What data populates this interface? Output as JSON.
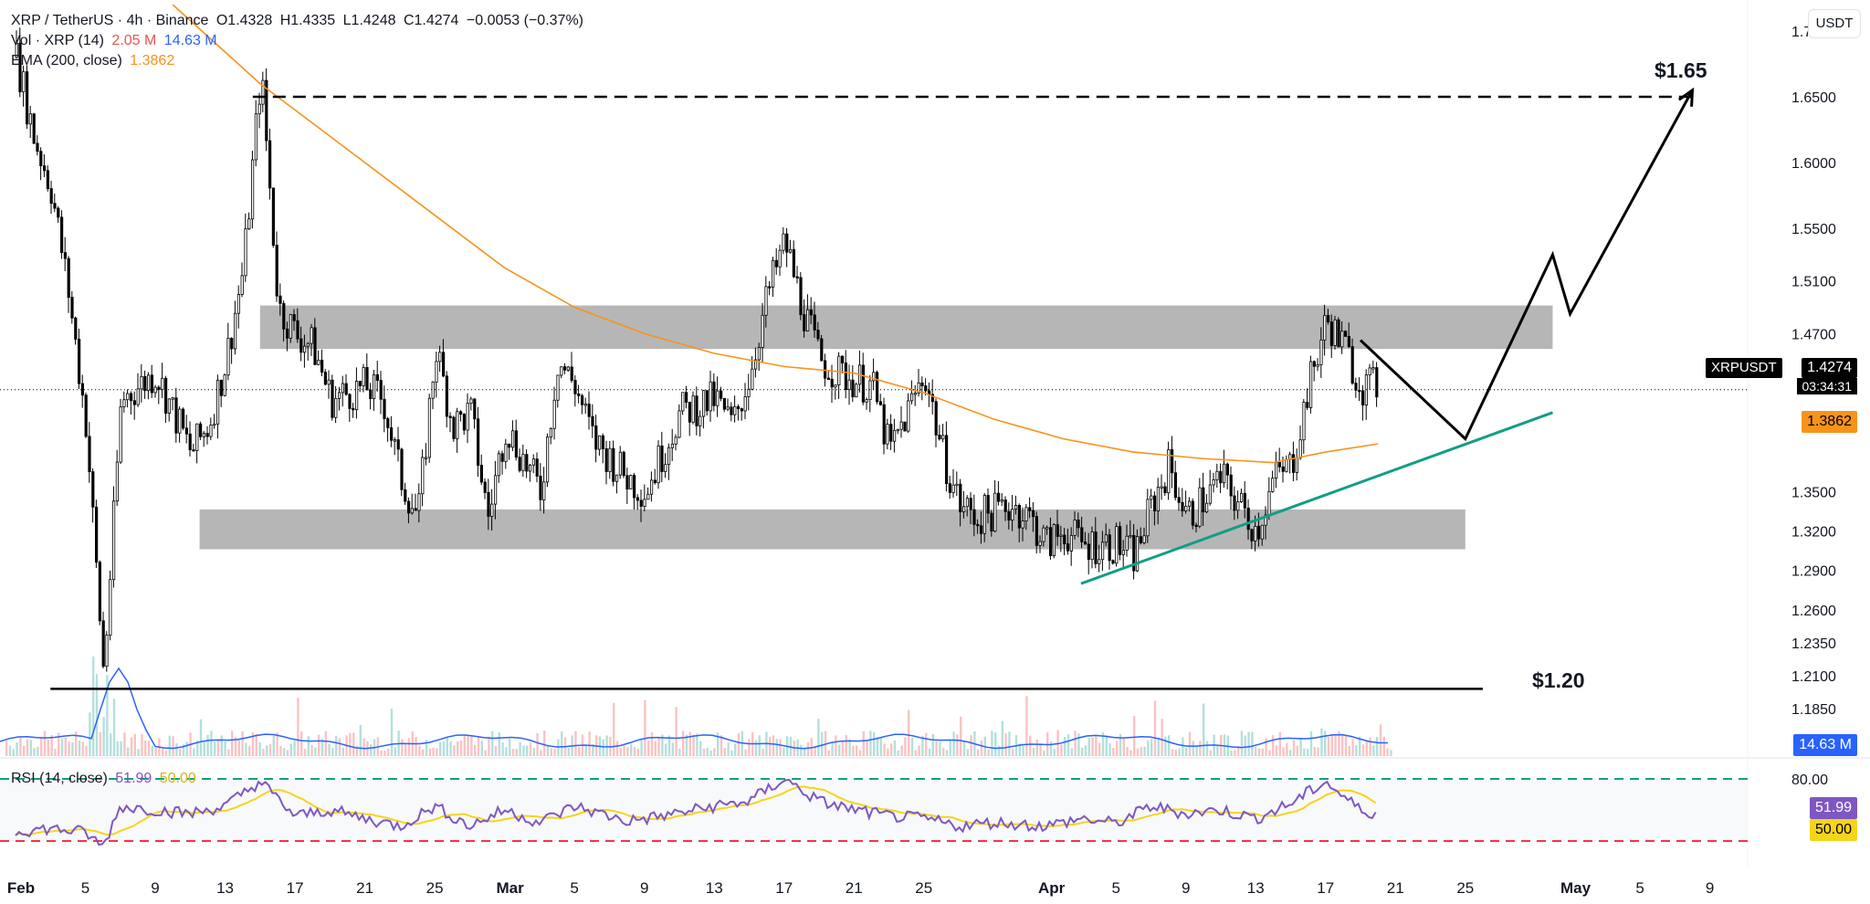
{
  "header": {
    "symbol": "XRP / TetherUS · 4h · Binance",
    "open": "O1.4328",
    "high": "H1.4335",
    "low": "L1.4248",
    "close": "C1.4274",
    "change": "−0.0053 (−0.37%)",
    "vol_label": "Vol · XRP (14)",
    "vol_value": "2.05 M",
    "vol_ma": "14.63 M",
    "ema_label": "EMA (200, close)",
    "ema_value": "1.3862",
    "rsi_label": "RSI (14, close)",
    "rsi_value": "51.99",
    "rsi_ma": "50.00"
  },
  "currency": "USDT",
  "symbol_tag": "XRPUSDT",
  "price_tag": "1.4274",
  "countdown": "03:34:31",
  "ema_tag": "1.3862",
  "vol_tag": "14.63 M",
  "rsi_tag": "51.99",
  "rsi_ma_tag": "50.00",
  "annotations": {
    "target_high": "$1.65",
    "support_low": "$1.20"
  },
  "colors": {
    "up": "#26a69a",
    "down": "#ef5350",
    "candle": "#000000",
    "ema": "#f7931a",
    "zone": "#9e9e9e",
    "trend": "#129e85",
    "rsi": "#7e57c2",
    "rsi_ma": "#f5d41b",
    "vol_ma": "#2962ff",
    "rsi_upper": "#129e85",
    "rsi_lower": "#f23645"
  },
  "chart_data": {
    "type": "candlestick",
    "price_axis": {
      "ticks": [
        "1.7000",
        "1.6500",
        "1.6000",
        "1.5500",
        "1.5100",
        "1.4700",
        "1.4274",
        "1.3862",
        "1.3500",
        "1.3200",
        "1.2900",
        "1.2600",
        "1.2350",
        "1.2100",
        "1.1850"
      ]
    },
    "rsi_axis": {
      "ticks": [
        "80.00",
        "51.99",
        "50.00"
      ]
    },
    "time_axis": {
      "ticks": [
        "Feb",
        "5",
        "9",
        "13",
        "17",
        "21",
        "25",
        "Mar",
        "5",
        "9",
        "13",
        "17",
        "21",
        "25",
        "Apr",
        "5",
        "9",
        "13",
        "17",
        "21",
        "25",
        "May",
        "5",
        "9"
      ]
    },
    "price_path": [
      [
        "Feb 1",
        1.68
      ],
      [
        "Feb 2",
        1.62
      ],
      [
        "Feb 3",
        1.58
      ],
      [
        "Feb 4",
        1.5
      ],
      [
        "Feb 5",
        1.4
      ],
      [
        "Feb 6",
        1.21
      ],
      [
        "Feb 7",
        1.42
      ],
      [
        "Feb 8",
        1.43
      ],
      [
        "Feb 9",
        1.44
      ],
      [
        "Feb 11",
        1.38
      ],
      [
        "Feb 12",
        1.4
      ],
      [
        "Feb 13",
        1.45
      ],
      [
        "Feb 14",
        1.52
      ],
      [
        "Feb 15",
        1.67
      ],
      [
        "Feb 16",
        1.49
      ],
      [
        "Feb 17",
        1.47
      ],
      [
        "Feb 18",
        1.46
      ],
      [
        "Feb 19",
        1.42
      ],
      [
        "Feb 21",
        1.43
      ],
      [
        "Feb 22",
        1.42
      ],
      [
        "Feb 23",
        1.36
      ],
      [
        "Feb 24",
        1.33
      ],
      [
        "Feb 25",
        1.46
      ],
      [
        "Feb 26",
        1.4
      ],
      [
        "Feb 27",
        1.41
      ],
      [
        "Feb 28",
        1.33
      ],
      [
        "Mar 1",
        1.4
      ],
      [
        "Mar 3",
        1.35
      ],
      [
        "Mar 4",
        1.45
      ],
      [
        "Mar 5",
        1.43
      ],
      [
        "Mar 6",
        1.39
      ],
      [
        "Mar 8",
        1.36
      ],
      [
        "Mar 9",
        1.35
      ],
      [
        "Mar 10",
        1.38
      ],
      [
        "Mar 11",
        1.41
      ],
      [
        "Mar 13",
        1.42
      ],
      [
        "Mar 14",
        1.4
      ],
      [
        "Mar 15",
        1.44
      ],
      [
        "Mar 16",
        1.5
      ],
      [
        "Mar 17",
        1.54
      ],
      [
        "Mar 18",
        1.49
      ],
      [
        "Mar 19",
        1.45
      ],
      [
        "Mar 20",
        1.44
      ],
      [
        "Mar 22",
        1.43
      ],
      [
        "Mar 23",
        1.38
      ],
      [
        "Mar 24",
        1.41
      ],
      [
        "Mar 25",
        1.44
      ],
      [
        "Mar 26",
        1.38
      ],
      [
        "Mar 27",
        1.34
      ],
      [
        "Mar 28",
        1.33
      ],
      [
        "Mar 30",
        1.34
      ],
      [
        "Mar 31",
        1.33
      ],
      [
        "Apr 1",
        1.31
      ],
      [
        "Apr 2",
        1.32
      ],
      [
        "Apr 3",
        1.31
      ],
      [
        "Apr 5",
        1.31
      ],
      [
        "Apr 6",
        1.3
      ],
      [
        "Apr 7",
        1.34
      ],
      [
        "Apr 8",
        1.37
      ],
      [
        "Apr 9",
        1.33
      ],
      [
        "Apr 11",
        1.36
      ],
      [
        "Apr 12",
        1.34
      ],
      [
        "Apr 13",
        1.32
      ],
      [
        "Apr 14",
        1.36
      ],
      [
        "Apr 15",
        1.37
      ],
      [
        "Apr 16",
        1.43
      ],
      [
        "Apr 17",
        1.48
      ],
      [
        "Apr 18",
        1.46
      ],
      [
        "Apr 19",
        1.43
      ],
      [
        "Apr 20",
        1.43
      ]
    ],
    "ema_path": [
      [
        "Feb 10",
        1.72
      ],
      [
        "Feb 15",
        1.66
      ],
      [
        "Feb 20",
        1.61
      ],
      [
        "Feb 25",
        1.56
      ],
      [
        "Mar 1",
        1.52
      ],
      [
        "Mar 5",
        1.49
      ],
      [
        "Mar 9",
        1.47
      ],
      [
        "Mar 13",
        1.455
      ],
      [
        "Mar 17",
        1.445
      ],
      [
        "Mar 21",
        1.44
      ],
      [
        "Mar 25",
        1.425
      ],
      [
        "Mar 29",
        1.405
      ],
      [
        "Apr 2",
        1.39
      ],
      [
        "Apr 6",
        1.38
      ],
      [
        "Apr 10",
        1.375
      ],
      [
        "Apr 14",
        1.372
      ],
      [
        "Apr 17",
        1.38
      ],
      [
        "Apr 20",
        1.3862
      ]
    ],
    "zones": [
      {
        "from": "Feb 15",
        "to": "Apr 30",
        "low": 1.475,
        "high": 1.49
      },
      {
        "from": "Feb 13",
        "to": "Apr 25",
        "low": 1.32,
        "high": 1.335
      }
    ],
    "levels": [
      {
        "price": 1.65,
        "label": "$1.65",
        "from": "Feb 15",
        "to": "May 8",
        "style": "dashed"
      },
      {
        "price": 1.2,
        "label": "$1.20",
        "from": "Feb 3",
        "to": "Apr 26",
        "style": "solid"
      }
    ],
    "trendline": {
      "from": [
        "Apr 3",
        1.28
      ],
      "to": [
        "Apr 30",
        1.41
      ]
    },
    "projection": [
      [
        "Apr 19",
        1.465
      ],
      [
        "Apr 25",
        1.39
      ],
      [
        "Apr 30",
        1.53
      ],
      [
        "May 1",
        1.485
      ],
      [
        "May 8",
        1.655
      ]
    ],
    "rsi_levels": [
      80,
      30
    ],
    "rsi_path": [
      [
        "Feb 1",
        38
      ],
      [
        "Feb 3",
        40
      ],
      [
        "Feb 5",
        37
      ],
      [
        "Feb 6",
        25
      ],
      [
        "Feb 7",
        58
      ],
      [
        "Feb 9",
        55
      ],
      [
        "Feb 11",
        52
      ],
      [
        "Feb 13",
        58
      ],
      [
        "Feb 15",
        78
      ],
      [
        "Feb 17",
        50
      ],
      [
        "Feb 19",
        55
      ],
      [
        "Feb 21",
        48
      ],
      [
        "Feb 23",
        42
      ],
      [
        "Feb 25",
        58
      ],
      [
        "Feb 27",
        42
      ],
      [
        "Mar 1",
        55
      ],
      [
        "Mar 3",
        45
      ],
      [
        "Mar 5",
        58
      ],
      [
        "Mar 8",
        46
      ],
      [
        "Mar 10",
        50
      ],
      [
        "Mar 13",
        58
      ],
      [
        "Mar 15",
        62
      ],
      [
        "Mar 17",
        80
      ],
      [
        "Mar 19",
        62
      ],
      [
        "Mar 21",
        55
      ],
      [
        "Mar 23",
        50
      ],
      [
        "Mar 25",
        48
      ],
      [
        "Mar 27",
        42
      ],
      [
        "Mar 29",
        45
      ],
      [
        "Apr 1",
        42
      ],
      [
        "Apr 3",
        48
      ],
      [
        "Apr 5",
        44
      ],
      [
        "Apr 7",
        58
      ],
      [
        "Apr 9",
        52
      ],
      [
        "Apr 11",
        55
      ],
      [
        "Apr 13",
        48
      ],
      [
        "Apr 15",
        60
      ],
      [
        "Apr 17",
        78
      ],
      [
        "Apr 18",
        66
      ],
      [
        "Apr 19",
        55
      ],
      [
        "Apr 20",
        51.99
      ]
    ]
  }
}
